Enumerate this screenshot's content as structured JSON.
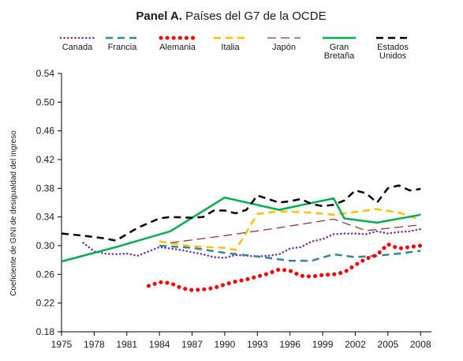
{
  "chart_data": {
    "type": "line",
    "title_bold": "Panel A.",
    "title_rest": " Países del G7 de la OCDE",
    "ylabel": "Coeficiente de GINI de desigualdad del ingreso",
    "xlabel": "",
    "ylim": [
      0.18,
      0.54
    ],
    "xlim": [
      1975,
      2009
    ],
    "yticks": [
      "0.18",
      "0.22",
      "0.26",
      "0.30",
      "0.34",
      "0.38",
      "0.42",
      "0.46",
      "0.50",
      "0.54"
    ],
    "xticks": [
      "1975",
      "1978",
      "1981",
      "1984",
      "1987",
      "1990",
      "1993",
      "1996",
      "1999",
      "2002",
      "2005",
      "2008"
    ],
    "grid": false,
    "legend_position": "top",
    "series": [
      {
        "name": "Canada",
        "label_lines": [
          "Canada"
        ],
        "color": "#7030a0",
        "style": "dotted",
        "points": [
          [
            1977,
            0.304
          ],
          [
            1978,
            0.292
          ],
          [
            1979,
            0.289
          ],
          [
            1980,
            0.288
          ],
          [
            1981,
            0.289
          ],
          [
            1982,
            0.286
          ],
          [
            1983,
            0.292
          ],
          [
            1984,
            0.298
          ],
          [
            1985,
            0.296
          ],
          [
            1986,
            0.294
          ],
          [
            1987,
            0.291
          ],
          [
            1988,
            0.288
          ],
          [
            1989,
            0.284
          ],
          [
            1990,
            0.283
          ],
          [
            1991,
            0.287
          ],
          [
            1992,
            0.286
          ],
          [
            1993,
            0.285
          ],
          [
            1994,
            0.286
          ],
          [
            1995,
            0.288
          ],
          [
            1996,
            0.296
          ],
          [
            1997,
            0.298
          ],
          [
            1998,
            0.306
          ],
          [
            1999,
            0.309
          ],
          [
            2000,
            0.316
          ],
          [
            2001,
            0.317
          ],
          [
            2002,
            0.317
          ],
          [
            2003,
            0.316
          ],
          [
            2004,
            0.32
          ],
          [
            2005,
            0.317
          ],
          [
            2006,
            0.319
          ],
          [
            2007,
            0.32
          ],
          [
            2008,
            0.323
          ]
        ]
      },
      {
        "name": "Francia",
        "label_lines": [
          "Francia"
        ],
        "color": "#31859c",
        "style": "dashed",
        "points": [
          [
            1984,
            0.3
          ],
          [
            1987,
            0.297
          ],
          [
            1990,
            0.29
          ],
          [
            1993,
            0.285
          ],
          [
            1996,
            0.279
          ],
          [
            1998,
            0.279
          ],
          [
            2000,
            0.288
          ],
          [
            2002,
            0.284
          ],
          [
            2004,
            0.286
          ],
          [
            2006,
            0.289
          ],
          [
            2008,
            0.293
          ]
        ]
      },
      {
        "name": "Alemania",
        "label_lines": [
          "Alemania"
        ],
        "color": "#ff0000",
        "style": "dots",
        "points": [
          [
            1983,
            0.244
          ],
          [
            1984,
            0.249
          ],
          [
            1985,
            0.248
          ],
          [
            1986,
            0.241
          ],
          [
            1987,
            0.238
          ],
          [
            1988,
            0.239
          ],
          [
            1989,
            0.241
          ],
          [
            1990,
            0.246
          ],
          [
            1991,
            0.25
          ],
          [
            1992,
            0.253
          ],
          [
            1993,
            0.257
          ],
          [
            1994,
            0.261
          ],
          [
            1995,
            0.267
          ],
          [
            1996,
            0.265
          ],
          [
            1997,
            0.258
          ],
          [
            1998,
            0.257
          ],
          [
            1999,
            0.259
          ],
          [
            2000,
            0.26
          ],
          [
            2001,
            0.263
          ],
          [
            2002,
            0.273
          ],
          [
            2003,
            0.282
          ],
          [
            2004,
            0.287
          ],
          [
            2005,
            0.302
          ],
          [
            2006,
            0.296
          ],
          [
            2007,
            0.298
          ],
          [
            2008,
            0.3
          ]
        ]
      },
      {
        "name": "Italia",
        "label_lines": [
          "Italia"
        ],
        "color": "#ffc000",
        "style": "dashed",
        "points": [
          [
            1984,
            0.306
          ],
          [
            1987,
            0.299
          ],
          [
            1990,
            0.297
          ],
          [
            1991,
            0.294
          ],
          [
            1993,
            0.344
          ],
          [
            1995,
            0.348
          ],
          [
            1998,
            0.346
          ],
          [
            2000,
            0.343
          ],
          [
            2004,
            0.351
          ],
          [
            2006,
            0.346
          ],
          [
            2008,
            0.336
          ]
        ]
      },
      {
        "name": "Japón",
        "label_lines": [
          "Japón"
        ],
        "color": "#953735",
        "style": "dashed-thin",
        "points": [
          [
            1985,
            0.304
          ],
          [
            1990,
            0.314
          ],
          [
            1995,
            0.325
          ],
          [
            2000,
            0.337
          ],
          [
            2003,
            0.321
          ],
          [
            2008,
            0.329
          ]
        ]
      },
      {
        "name": "Gran Bretaña",
        "label_lines": [
          "Gran",
          "Bretaña"
        ],
        "color": "#00b050",
        "style": "solid",
        "points": [
          [
            1975,
            0.278
          ],
          [
            1980,
            0.298
          ],
          [
            1985,
            0.32
          ],
          [
            1990,
            0.367
          ],
          [
            1995,
            0.35
          ],
          [
            2000,
            0.366
          ],
          [
            2001,
            0.338
          ],
          [
            2004,
            0.332
          ],
          [
            2008,
            0.343
          ]
        ]
      },
      {
        "name": "Estados Unidos",
        "label_lines": [
          "Estados",
          "Unidos"
        ],
        "color": "#000000",
        "style": "dashed",
        "points": [
          [
            1975,
            0.317
          ],
          [
            1977,
            0.314
          ],
          [
            1979,
            0.31
          ],
          [
            1980,
            0.307
          ],
          [
            1982,
            0.325
          ],
          [
            1984,
            0.338
          ],
          [
            1985,
            0.34
          ],
          [
            1987,
            0.339
          ],
          [
            1988,
            0.34
          ],
          [
            1989,
            0.349
          ],
          [
            1990,
            0.349
          ],
          [
            1991,
            0.345
          ],
          [
            1992,
            0.35
          ],
          [
            1993,
            0.37
          ],
          [
            1994,
            0.365
          ],
          [
            1995,
            0.36
          ],
          [
            1996,
            0.362
          ],
          [
            1997,
            0.365
          ],
          [
            1998,
            0.358
          ],
          [
            1999,
            0.355
          ],
          [
            2000,
            0.357
          ],
          [
            2001,
            0.363
          ],
          [
            2002,
            0.377
          ],
          [
            2003,
            0.373
          ],
          [
            2004,
            0.36
          ],
          [
            2005,
            0.38
          ],
          [
            2006,
            0.384
          ],
          [
            2007,
            0.377
          ],
          [
            2008,
            0.379
          ]
        ]
      }
    ]
  }
}
